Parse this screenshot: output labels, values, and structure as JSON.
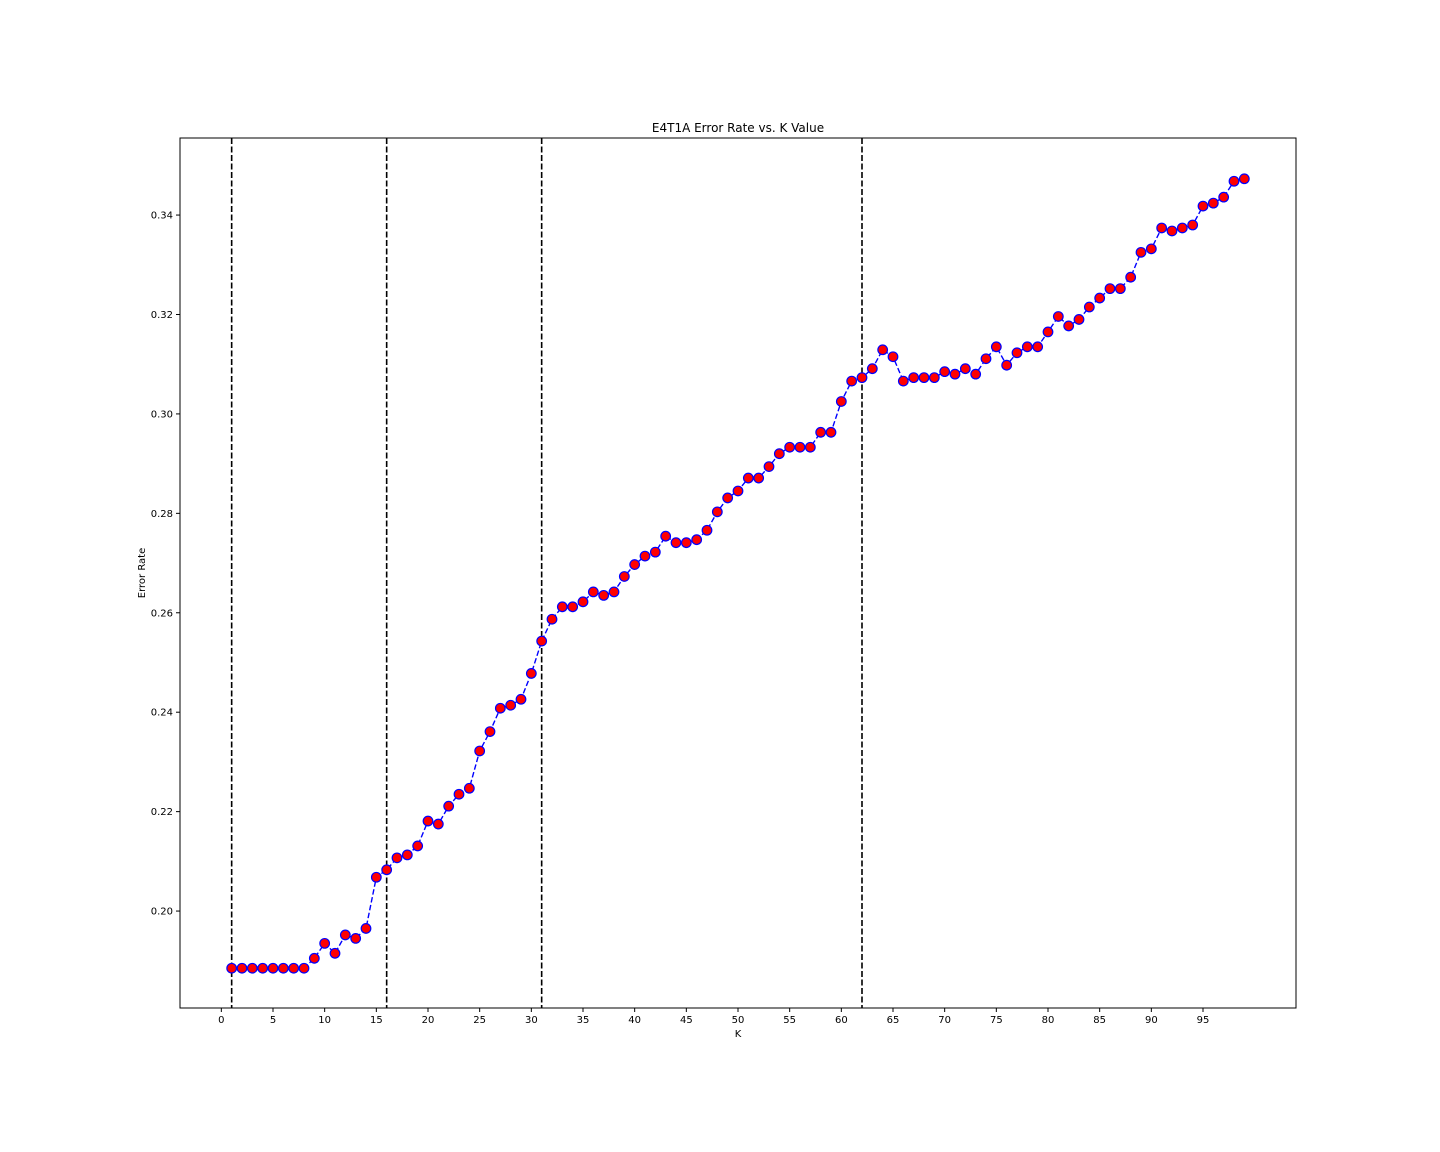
{
  "chart_data": {
    "type": "line",
    "title": "E4T1A Error Rate vs. K Value",
    "xlabel": "K",
    "ylabel": "Error Rate",
    "xlim": [
      -4,
      104
    ],
    "ylim": [
      0.1805,
      0.3555
    ],
    "xticks": [
      0,
      5,
      10,
      15,
      20,
      25,
      30,
      35,
      40,
      45,
      50,
      55,
      60,
      65,
      70,
      75,
      80,
      85,
      90,
      95
    ],
    "yticks": [
      0.2,
      0.22,
      0.24,
      0.26,
      0.28,
      0.3,
      0.32,
      0.34
    ],
    "ytick_labels": [
      "0.20",
      "0.22",
      "0.24",
      "0.26",
      "0.28",
      "0.30",
      "0.32",
      "0.34"
    ],
    "vlines": [
      1,
      16,
      31,
      62
    ],
    "grid": false,
    "colors": {
      "line": "#0000ff",
      "marker_face": "#ff0000",
      "marker_edge": "#0000ff",
      "vline": "#000000"
    },
    "series": [
      {
        "line_style": "dashed",
        "marker": "circle",
        "x": [
          1,
          2,
          3,
          4,
          5,
          6,
          7,
          8,
          9,
          10,
          11,
          12,
          13,
          14,
          15,
          16,
          17,
          18,
          19,
          20,
          21,
          22,
          23,
          24,
          25,
          26,
          27,
          28,
          29,
          30,
          31,
          32,
          33,
          34,
          35,
          36,
          37,
          38,
          39,
          40,
          41,
          42,
          43,
          44,
          45,
          46,
          47,
          48,
          49,
          50,
          51,
          52,
          53,
          54,
          55,
          56,
          57,
          58,
          59,
          60,
          61,
          62,
          63,
          64,
          65,
          66,
          67,
          68,
          69,
          70,
          71,
          72,
          73,
          74,
          75,
          76,
          77,
          78,
          79,
          80,
          81,
          82,
          83,
          84,
          85,
          86,
          87,
          88,
          89,
          90,
          91,
          92,
          93,
          94,
          95,
          96,
          97,
          98,
          99
        ],
        "y": [
          0.1885,
          0.1885,
          0.1885,
          0.1885,
          0.1885,
          0.1885,
          0.1885,
          0.1885,
          0.1905,
          0.1935,
          0.1915,
          0.1952,
          0.1945,
          0.1965,
          0.2068,
          0.2083,
          0.2107,
          0.2113,
          0.2131,
          0.2181,
          0.2175,
          0.2211,
          0.2235,
          0.2247,
          0.2322,
          0.2361,
          0.2408,
          0.2414,
          0.2426,
          0.2478,
          0.2543,
          0.2587,
          0.2612,
          0.2612,
          0.2622,
          0.2642,
          0.2635,
          0.2642,
          0.2673,
          0.2697,
          0.2714,
          0.2722,
          0.2754,
          0.2741,
          0.2741,
          0.2747,
          0.2766,
          0.2803,
          0.2831,
          0.2845,
          0.2871,
          0.2871,
          0.2894,
          0.292,
          0.2933,
          0.2933,
          0.2933,
          0.2963,
          0.2963,
          0.3025,
          0.3066,
          0.3073,
          0.3091,
          0.3129,
          0.3115,
          0.3066,
          0.3073,
          0.3073,
          0.3073,
          0.3085,
          0.308,
          0.3091,
          0.308,
          0.3111,
          0.3135,
          0.3098,
          0.3123,
          0.3135,
          0.3135,
          0.3165,
          0.3196,
          0.3177,
          0.319,
          0.3215,
          0.3233,
          0.3252,
          0.3252,
          0.3275,
          0.3325,
          0.3332,
          0.3374,
          0.3368,
          0.3374,
          0.338,
          0.3418,
          0.3424,
          0.3436,
          0.3468,
          0.3473
        ]
      }
    ]
  }
}
